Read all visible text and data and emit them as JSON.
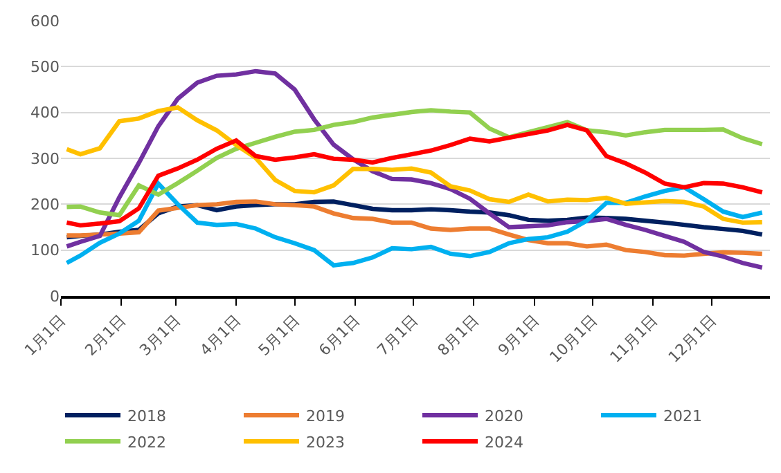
{
  "chart_data": {
    "type": "line",
    "x": [
      "--01-04",
      "--01-11",
      "--01-21",
      "--01-31",
      "--02-10",
      "--02-20",
      "--03-02",
      "--03-12",
      "--03-22",
      "--04-01",
      "--04-11",
      "--04-21",
      "--05-01",
      "--05-11",
      "--05-21",
      "--05-31",
      "--06-10",
      "--06-20",
      "--06-30",
      "--07-10",
      "--07-20",
      "--07-30",
      "--08-09",
      "--08-19",
      "--08-29",
      "--09-08",
      "--09-18",
      "--09-28",
      "--10-08",
      "--10-18",
      "--10-28",
      "--11-07",
      "--11-17",
      "--11-27",
      "--12-07",
      "--12-17",
      "--12-27"
    ],
    "series": [
      {
        "name": "2018",
        "color": "#002060",
        "values": [
          128,
          131,
          134,
          140,
          144,
          180,
          195,
          198,
          187,
          195,
          198,
          200,
          200,
          205,
          206,
          198,
          190,
          187,
          187,
          189,
          187,
          184,
          182,
          176,
          166,
          164,
          166,
          171,
          170,
          168,
          164,
          160,
          155,
          150,
          146,
          142,
          134
        ]
      },
      {
        "name": "2019",
        "color": "#ed7d31",
        "values": [
          132,
          132,
          134,
          136,
          139,
          186,
          192,
          198,
          200,
          205,
          206,
          200,
          198,
          195,
          180,
          170,
          168,
          160,
          160,
          147,
          144,
          147,
          147,
          134,
          122,
          115,
          115,
          108,
          112,
          100,
          96,
          89,
          88,
          92,
          95,
          94,
          92
        ]
      },
      {
        "name": "2020",
        "color": "#7030a0",
        "values": [
          108,
          118,
          131,
          215,
          290,
          370,
          430,
          465,
          480,
          483,
          490,
          485,
          450,
          385,
          330,
          298,
          272,
          255,
          254,
          246,
          233,
          212,
          180,
          150,
          152,
          154,
          161,
          163,
          168,
          155,
          144,
          131,
          118,
          96,
          86,
          72,
          62
        ]
      },
      {
        "name": "2021",
        "color": "#00b0f0",
        "values": [
          72,
          88,
          116,
          136,
          164,
          245,
          200,
          160,
          155,
          157,
          147,
          128,
          115,
          100,
          67,
          72,
          84,
          104,
          102,
          107,
          92,
          87,
          96,
          115,
          124,
          128,
          140,
          164,
          203,
          203,
          217,
          229,
          237,
          211,
          184,
          172,
          182
        ]
      },
      {
        "name": "2022",
        "color": "#92d050",
        "values": [
          194,
          195,
          182,
          176,
          241,
          221,
          246,
          273,
          301,
          321,
          334,
          347,
          358,
          362,
          373,
          379,
          389,
          395,
          401,
          405,
          402,
          400,
          365,
          346,
          357,
          368,
          379,
          361,
          357,
          350,
          357,
          362,
          362,
          362,
          363,
          344,
          331
        ]
      },
      {
        "name": "2023",
        "color": "#ffc000",
        "values": [
          320,
          309,
          322,
          381,
          387,
          403,
          411,
          383,
          361,
          329,
          301,
          253,
          229,
          226,
          241,
          277,
          277,
          275,
          278,
          269,
          239,
          230,
          211,
          205,
          221,
          206,
          210,
          209,
          214,
          201,
          204,
          207,
          205,
          195,
          168,
          160,
          161
        ]
      },
      {
        "name": "2024",
        "color": "#ff0000",
        "values": [
          160,
          154,
          158,
          163,
          191,
          262,
          278,
          297,
          321,
          339,
          305,
          297,
          302,
          309,
          299,
          297,
          291,
          301,
          309,
          317,
          329,
          343,
          337,
          345,
          353,
          361,
          373,
          361,
          305,
          289,
          269,
          245,
          237,
          246,
          245,
          237,
          226
        ]
      }
    ],
    "xlim": [
      "--01-01",
      "--12-31"
    ],
    "xticks": [
      {
        "value": "--01-01",
        "label": "1月1日"
      },
      {
        "value": "--02-01",
        "label": "2月1日"
      },
      {
        "value": "--03-01",
        "label": "3月1日"
      },
      {
        "value": "--04-01",
        "label": "4月1日"
      },
      {
        "value": "--05-01",
        "label": "5月1日"
      },
      {
        "value": "--06-01",
        "label": "6月1日"
      },
      {
        "value": "--07-01",
        "label": "7月1日"
      },
      {
        "value": "--08-01",
        "label": "8月1日"
      },
      {
        "value": "--09-01",
        "label": "9月1日"
      },
      {
        "value": "--10-01",
        "label": "10月1日"
      },
      {
        "value": "--11-01",
        "label": "11月1日"
      },
      {
        "value": "--12-01",
        "label": "12月1日"
      }
    ],
    "ylim": [
      0,
      600
    ],
    "yticks": [
      0,
      100,
      200,
      300,
      400,
      500,
      600
    ],
    "grid": "y",
    "legend": "bottom",
    "marker": "none",
    "line_style": "solid"
  }
}
